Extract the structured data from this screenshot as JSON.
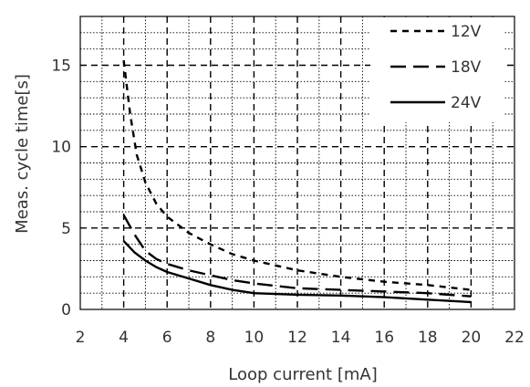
{
  "chart_data": {
    "type": "line",
    "xlabel": "Loop current [mA]",
    "ylabel": "Meas. cycle time[s]",
    "xlim": [
      2,
      22
    ],
    "ylim": [
      0,
      18
    ],
    "x_ticks": [
      2,
      4,
      6,
      8,
      10,
      12,
      14,
      16,
      18,
      20,
      22
    ],
    "y_ticks": [
      0,
      5,
      10,
      15
    ],
    "x_grid_major": [
      4,
      6,
      8,
      10,
      12,
      14,
      16,
      18,
      20
    ],
    "y_grid_major": [
      5,
      10,
      15
    ],
    "x_grid_minor_step": 1,
    "y_grid_minor_step": 1,
    "grid": true,
    "legend_position": "top-right",
    "series": [
      {
        "name": "12V",
        "line_style": "short-dash",
        "x": [
          4,
          4.3,
          4.6,
          5,
          5.5,
          6,
          7,
          8,
          9,
          10,
          12,
          14,
          16,
          18,
          20
        ],
        "y": [
          15.3,
          12.0,
          9.5,
          7.8,
          6.5,
          5.7,
          4.7,
          4.0,
          3.4,
          3.0,
          2.4,
          2.0,
          1.7,
          1.5,
          1.2
        ]
      },
      {
        "name": "18V",
        "line_style": "long-dash",
        "x": [
          4,
          4.5,
          5,
          5.5,
          6,
          7,
          8,
          9,
          10,
          12,
          14,
          16,
          18,
          20
        ],
        "y": [
          5.8,
          4.6,
          3.6,
          3.1,
          2.8,
          2.4,
          2.1,
          1.8,
          1.6,
          1.3,
          1.2,
          1.1,
          1.0,
          0.8
        ]
      },
      {
        "name": "24V",
        "line_style": "solid",
        "x": [
          4,
          4.5,
          5,
          5.5,
          6,
          7,
          8,
          9,
          10,
          12,
          14,
          16,
          18,
          20
        ],
        "y": [
          4.2,
          3.5,
          3.0,
          2.6,
          2.3,
          1.9,
          1.5,
          1.2,
          1.0,
          0.9,
          0.85,
          0.75,
          0.6,
          0.45
        ]
      }
    ]
  }
}
